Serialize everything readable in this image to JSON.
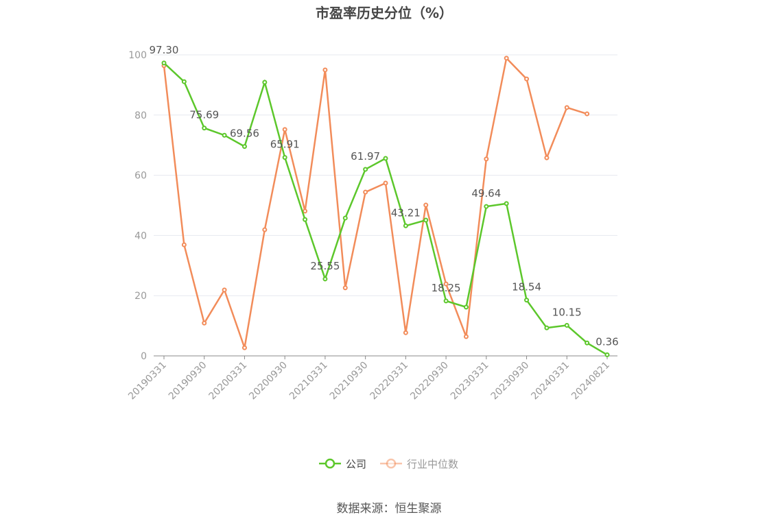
{
  "chart_data": {
    "type": "line",
    "title": "市盈率历史分位（%）",
    "source": "数据来源：恒生聚源",
    "categories": [
      "20190331",
      null,
      "20190930",
      null,
      "20200331",
      null,
      "20200930",
      null,
      "20210331",
      null,
      "20210930",
      null,
      "20220331",
      null,
      "20220930",
      null,
      "20230331",
      null,
      "20230930",
      null,
      "20240331",
      null,
      "20240821"
    ],
    "series": [
      {
        "name": "公司",
        "color": "#5cc72b",
        "values": [
          97.3,
          91.1,
          75.69,
          73.3,
          69.56,
          90.9,
          65.91,
          45.3,
          25.55,
          45.8,
          61.97,
          65.6,
          43.21,
          45.1,
          18.25,
          16.2,
          49.64,
          50.6,
          18.54,
          9.3,
          10.15,
          4.3,
          0.36
        ],
        "value_labels": [
          "97.30",
          null,
          "75.69",
          null,
          "69.56",
          null,
          "65.91",
          null,
          "25.55",
          null,
          "61.97",
          null,
          "43.21",
          null,
          "18.25",
          null,
          "49.64",
          null,
          "18.54",
          null,
          "10.15",
          null,
          "0.36"
        ]
      },
      {
        "name": "行业中位数",
        "color": "#f28c5a",
        "values": [
          96.4,
          36.9,
          10.9,
          21.9,
          2.7,
          41.9,
          75.2,
          48.1,
          95.0,
          22.6,
          54.4,
          57.4,
          7.7,
          50.1,
          23.9,
          6.4,
          65.4,
          98.9,
          92.0,
          65.8,
          82.5,
          80.4,
          null
        ]
      }
    ],
    "ylim": [
      0,
      100
    ],
    "yticks": [
      0,
      20,
      40,
      60,
      80,
      100
    ],
    "grid": true
  }
}
